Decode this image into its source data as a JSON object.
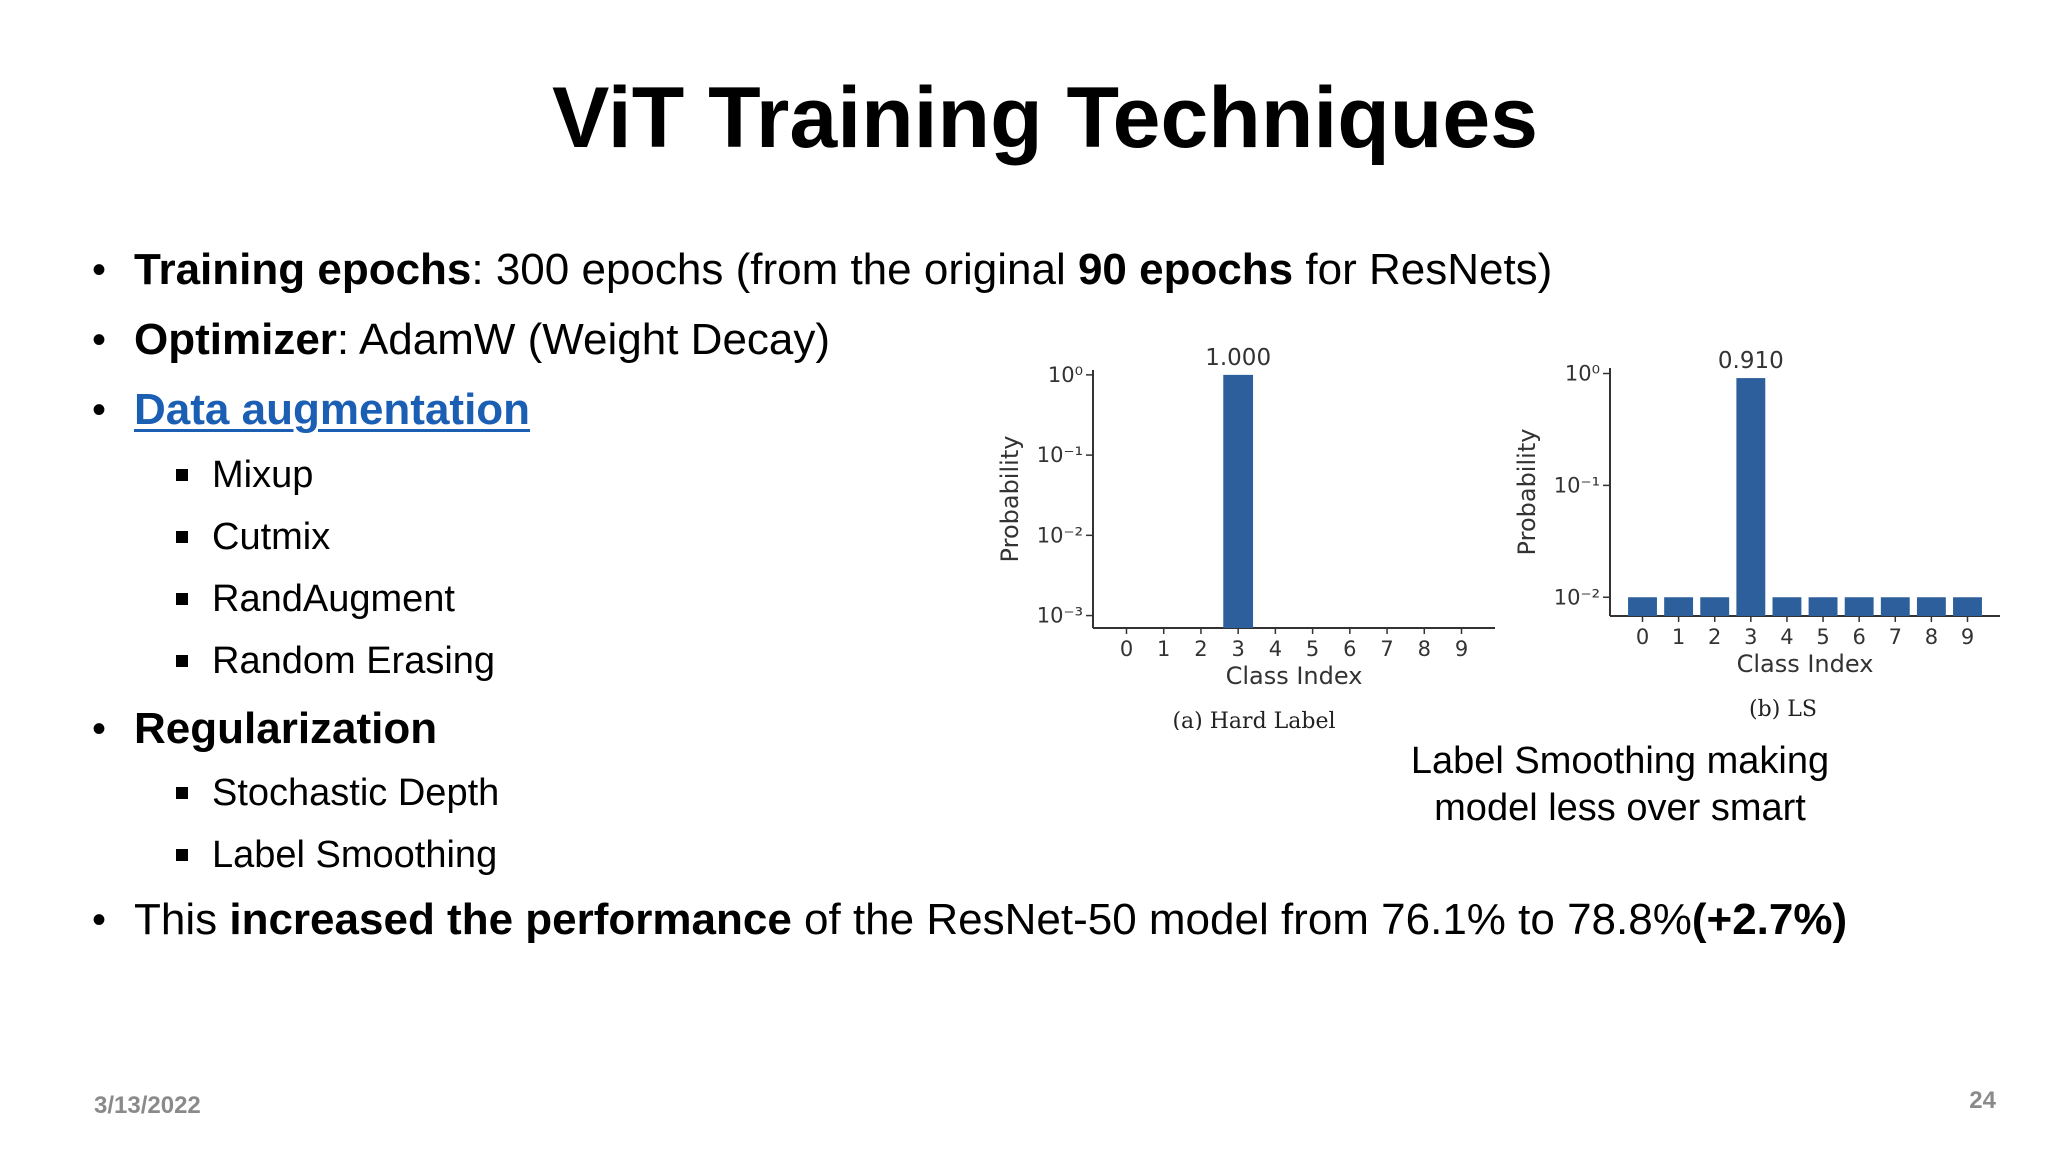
{
  "title": "ViT Training Techniques",
  "bullets": {
    "epochs": {
      "label": "Training epochs",
      "text1": ": 300 epochs (from the original ",
      "bold": "90 epochs",
      "text2": " for ResNets)"
    },
    "optimizer": {
      "label": "Optimizer",
      "text": ": AdamW (Weight Decay)"
    },
    "augmentation": {
      "label": "Data augmentation",
      "items": [
        "Mixup",
        "Cutmix",
        "RandAugment",
        "Random Erasing"
      ]
    },
    "regularization": {
      "label": "Regularization",
      "items": [
        "Stochastic Depth",
        "Label Smoothing"
      ]
    },
    "performance": {
      "text1": "This ",
      "bold1": "increased the performance",
      "text2": " of the ResNet-50 model  from 76.1% to 78.8%",
      "bold2": "(+2.7%)"
    }
  },
  "caption": {
    "line1": "Label Smoothing making",
    "line2": "model less over smart"
  },
  "footer": {
    "date": "3/13/2022",
    "page": "24"
  },
  "chart_data": [
    {
      "type": "bar",
      "subtitle": "(a) Hard Label",
      "xlabel": "Class Index",
      "ylabel": "Probability",
      "yscale": "log",
      "ylim": [
        0.0007,
        1.15
      ],
      "yticks": [
        "10⁰",
        "10⁻¹",
        "10⁻²",
        "10⁻³"
      ],
      "categories": [
        "0",
        "1",
        "2",
        "3",
        "4",
        "5",
        "6",
        "7",
        "8",
        "9"
      ],
      "values": [
        0,
        0,
        0,
        1.0,
        0,
        0,
        0,
        0,
        0,
        0
      ],
      "annotation": "1.000",
      "color": "#2c5f9b"
    },
    {
      "type": "bar",
      "subtitle": "(b) LS",
      "xlabel": "Class Index",
      "ylabel": "Probability",
      "yscale": "log",
      "ylim": [
        0.0068,
        1.12
      ],
      "yticks": [
        "10⁰",
        "10⁻¹",
        "10⁻²"
      ],
      "categories": [
        "0",
        "1",
        "2",
        "3",
        "4",
        "5",
        "6",
        "7",
        "8",
        "9"
      ],
      "values": [
        0.01,
        0.01,
        0.01,
        0.91,
        0.01,
        0.01,
        0.01,
        0.01,
        0.01,
        0.01
      ],
      "annotation": "0.910",
      "color": "#2c5f9b"
    }
  ]
}
